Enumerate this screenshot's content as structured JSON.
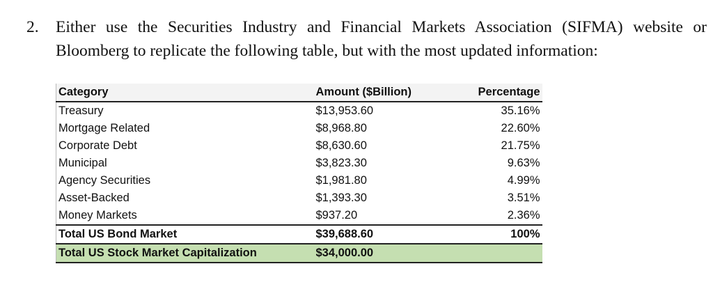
{
  "question": {
    "number": "2.",
    "line1": "Either use the Securities Industry and Financial Markets Association (SIFMA) website or",
    "line2": "Bloomberg to replicate the following table, but with the most updated information:"
  },
  "table": {
    "headers": {
      "category": "Category",
      "amount": "Amount ($Billion)",
      "percentage": "Percentage"
    },
    "rows": [
      {
        "category": "Treasury",
        "amount": "$13,953.60",
        "percentage": "35.16%"
      },
      {
        "category": "Mortgage Related",
        "amount": "$8,968.80",
        "percentage": "22.60%"
      },
      {
        "category": "Corporate Debt",
        "amount": "$8,630.60",
        "percentage": "21.75%"
      },
      {
        "category": "Municipal",
        "amount": "$3,823.30",
        "percentage": "9.63%"
      },
      {
        "category": "Agency Securities",
        "amount": "$1,981.80",
        "percentage": "4.99%"
      },
      {
        "category": "Asset-Backed",
        "amount": "$1,393.30",
        "percentage": "3.51%"
      },
      {
        "category": "Money Markets",
        "amount": "$937.20",
        "percentage": "2.36%"
      }
    ],
    "total_bond": {
      "category": "Total US Bond Market",
      "amount": "$39,688.60",
      "percentage": "100%"
    },
    "total_stock": {
      "category": "Total US Stock Market Capitalization",
      "amount": "$34,000.00",
      "percentage": ""
    },
    "highlight_color": "#c5dfb1"
  }
}
